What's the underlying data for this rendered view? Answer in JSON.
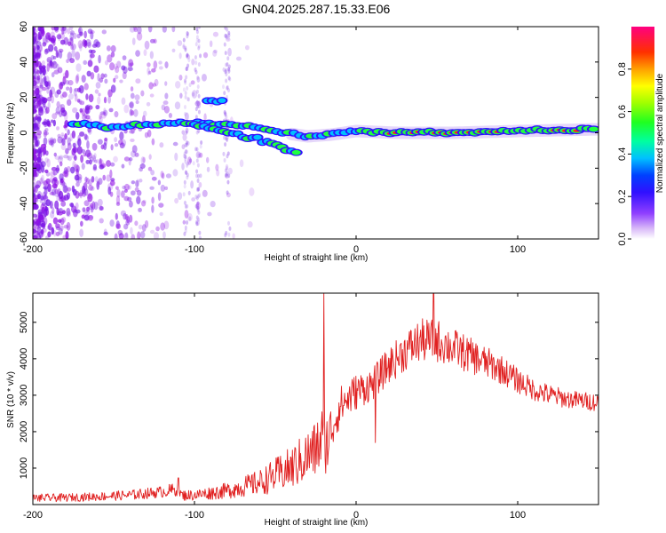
{
  "title": "GN04.2025.287.15.33.E06",
  "colors": {
    "snr_line": "#e02020",
    "frame": "#000000",
    "scatter_base": "#7a1fe8"
  },
  "chart_data": [
    {
      "type": "heatmap",
      "xlabel": "Height of straight line (km)",
      "ylabel": "Frequency (Hz)",
      "xlim": [
        -200,
        150
      ],
      "ylim": [
        -60,
        60
      ],
      "xticks": [
        -200,
        -100,
        0,
        100
      ],
      "yticks": [
        -60,
        -40,
        -20,
        0,
        20,
        40,
        60
      ],
      "colorbar": {
        "label": "Normalized spectral amplitude",
        "range": [
          0.0,
          1.0
        ],
        "ticks": [
          "0.0",
          "0.2",
          "0.4",
          "0.6",
          "0.8"
        ],
        "colormap": [
          "#ffffff",
          "#c8a0f5",
          "#8000ff",
          "#0000ff",
          "#00c8ff",
          "#00ff80",
          "#80ff00",
          "#ffff00",
          "#ff8000",
          "#ff0000",
          "#ff0080"
        ]
      },
      "ridge": {
        "description": "dominant spectral ridge near 0 Hz",
        "points": [
          {
            "x": -200,
            "y": 5
          },
          {
            "x": -170,
            "y": 5
          },
          {
            "x": -150,
            "y": 3
          },
          {
            "x": -125,
            "y": 5
          },
          {
            "x": -100,
            "y": 6
          },
          {
            "x": -80,
            "y": 5
          },
          {
            "x": -60,
            "y": 3
          },
          {
            "x": -45,
            "y": 0
          },
          {
            "x": -30,
            "y": -2
          },
          {
            "x": -15,
            "y": -1
          },
          {
            "x": 0,
            "y": 1
          },
          {
            "x": 25,
            "y": 0
          },
          {
            "x": 60,
            "y": 0
          },
          {
            "x": 100,
            "y": 1
          },
          {
            "x": 150,
            "y": 2
          }
        ]
      },
      "secondary_branch": {
        "description": "diverging branch toward negative frequency",
        "points": [
          {
            "x": -100,
            "y": 5
          },
          {
            "x": -80,
            "y": 0
          },
          {
            "x": -60,
            "y": -4
          },
          {
            "x": -45,
            "y": -8
          },
          {
            "x": -35,
            "y": -12
          }
        ]
      }
    },
    {
      "type": "line",
      "xlabel": "Height of straight line (km)",
      "ylabel": "SNR (10 * v/v)",
      "xlim": [
        -200,
        150
      ],
      "ylim": [
        0,
        5800
      ],
      "xticks": [
        -200,
        -100,
        0,
        100
      ],
      "yticks": [
        1000,
        2000,
        3000,
        4000,
        5000
      ],
      "series": [
        {
          "name": "SNR",
          "envelope_x": [
            -200,
            -180,
            -160,
            -140,
            -120,
            -110,
            -108,
            -100,
            -80,
            -60,
            -40,
            -25,
            -20,
            -18,
            -15,
            -10,
            0,
            10,
            20,
            30,
            40,
            50,
            60,
            70,
            80,
            90,
            100,
            110,
            120,
            130,
            140,
            150
          ],
          "envelope_mean": [
            180,
            190,
            220,
            260,
            350,
            420,
            250,
            260,
            380,
            600,
            1000,
            1500,
            1900,
            1700,
            2100,
            2700,
            3100,
            3300,
            3800,
            4200,
            4500,
            4500,
            4300,
            4100,
            3900,
            3700,
            3400,
            3150,
            3000,
            2900,
            2850,
            2800
          ],
          "envelope_spread": [
            110,
            110,
            120,
            140,
            160,
            200,
            150,
            150,
            220,
            350,
            600,
            800,
            1000,
            900,
            700,
            550,
            500,
            450,
            500,
            550,
            600,
            600,
            550,
            500,
            450,
            400,
            350,
            300,
            300,
            250,
            250,
            250
          ],
          "spikes": [
            {
              "x": -110,
              "y": 730
            },
            {
              "x": -20,
              "y": 5800
            },
            {
              "x": 48,
              "y": 5800
            },
            {
              "x": 12,
              "y": 1700
            }
          ]
        }
      ]
    }
  ]
}
